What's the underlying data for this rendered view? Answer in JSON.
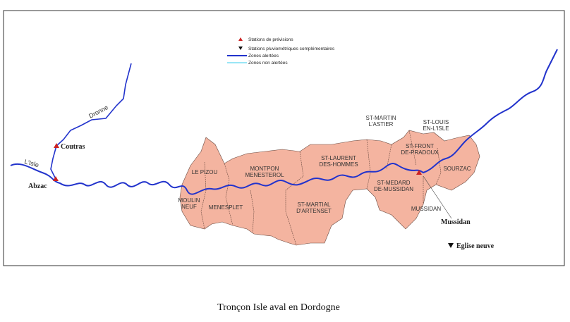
{
  "legend": [
    "Stations de prévisions",
    "Stations pluviométriques complémentaires",
    "Zones alertées",
    "Zones non alertées"
  ],
  "rivers": [
    "L'Isle",
    "Dronne"
  ],
  "stations": [
    "Coutras",
    "Abzac",
    "Mussidan",
    "Eglise neuve"
  ],
  "communes": [
    {
      "lines": [
        "LE PIZOU"
      ]
    },
    {
      "lines": [
        "MOULIN",
        "NEUF"
      ]
    },
    {
      "lines": [
        "MENESPLET"
      ]
    },
    {
      "lines": [
        "MONTPON",
        "MENESTEROL"
      ]
    },
    {
      "lines": [
        "ST-LAURENT",
        "DES-HOMMES"
      ]
    },
    {
      "lines": [
        "ST-MARTIAL",
        "D'ARTENSET"
      ]
    },
    {
      "lines": [
        "ST-MARTIN",
        "L'ASTIER"
      ]
    },
    {
      "lines": [
        "ST-FRONT",
        "DE-PRADOUX"
      ]
    },
    {
      "lines": [
        "ST-LOUIS",
        "EN-L'ISLE"
      ]
    },
    {
      "lines": [
        "SOURZAC"
      ]
    },
    {
      "lines": [
        "ST-MEDARD",
        "DE-MUSSIDAN"
      ]
    },
    {
      "lines": [
        "MUSSIDAN"
      ]
    }
  ],
  "caption": "Tronçon Isle aval en Dordogne"
}
